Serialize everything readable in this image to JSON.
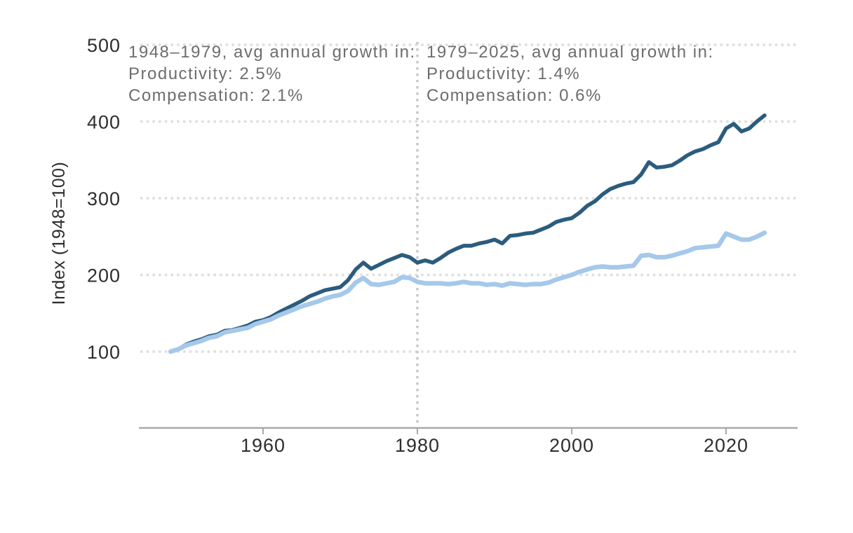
{
  "chart_data": {
    "type": "line",
    "title": "",
    "xlabel": "",
    "ylabel": "Index (1948=100)",
    "start_year": 1948,
    "end_year": 2025,
    "x_ticks": [
      1960,
      1980,
      2000,
      2020
    ],
    "y_ticks": [
      100,
      200,
      300,
      400,
      500
    ],
    "ylim": [
      0,
      500
    ],
    "grid": "horizontal-dotted",
    "divider_year": 1980,
    "legend": "none",
    "series": [
      {
        "name": "Productivity",
        "color": "#2b5c7e",
        "values": [
          100,
          103,
          109,
          113,
          116,
          120,
          122,
          127,
          128,
          131,
          134,
          139,
          141,
          145,
          151,
          156,
          161,
          166,
          172,
          176,
          180,
          182,
          184,
          193,
          207,
          216,
          208,
          213,
          218,
          222,
          226,
          223,
          216,
          219,
          216,
          222,
          229,
          234,
          238,
          238,
          241,
          243,
          246,
          241,
          251,
          252,
          254,
          255,
          259,
          263,
          269,
          272,
          274,
          281,
          290,
          296,
          305,
          312,
          316,
          319,
          321,
          331,
          347,
          340,
          341,
          343,
          349,
          356,
          361,
          364,
          369,
          373,
          391,
          397,
          387,
          391,
          400,
          408
        ]
      },
      {
        "name": "Compensation",
        "color": "#a5c8eb",
        "values": [
          100,
          103,
          108,
          111,
          114,
          118,
          120,
          125,
          127,
          129,
          131,
          136,
          139,
          142,
          147,
          151,
          155,
          159,
          162,
          165,
          169,
          172,
          174,
          179,
          190,
          196,
          188,
          187,
          189,
          191,
          197,
          196,
          191,
          189,
          189,
          189,
          188,
          189,
          191,
          189,
          189,
          187,
          188,
          186,
          189,
          188,
          187,
          188,
          188,
          190,
          194,
          197,
          200,
          204,
          207,
          210,
          211,
          210,
          210,
          211,
          212,
          225,
          226,
          223,
          223,
          225,
          228,
          231,
          235,
          236,
          237,
          238,
          254,
          250,
          246,
          246,
          250,
          255
        ]
      }
    ],
    "annotations": [
      {
        "lines": [
          "1948–1979, avg annual growth in:",
          "Productivity: 2.5%",
          "Compensation: 2.1%"
        ]
      },
      {
        "lines": [
          "1979–2025, avg annual growth in:",
          "Productivity: 1.4%",
          "Compensation: 0.6%"
        ]
      }
    ]
  },
  "style": {
    "background": "#ffffff",
    "grid_color": "#dedede",
    "divider_color": "#c9c9c9",
    "axis_color": "#a9a9a9",
    "tick_label_color": "#2e2e2e",
    "annotation_color": "#6d6d6d"
  }
}
